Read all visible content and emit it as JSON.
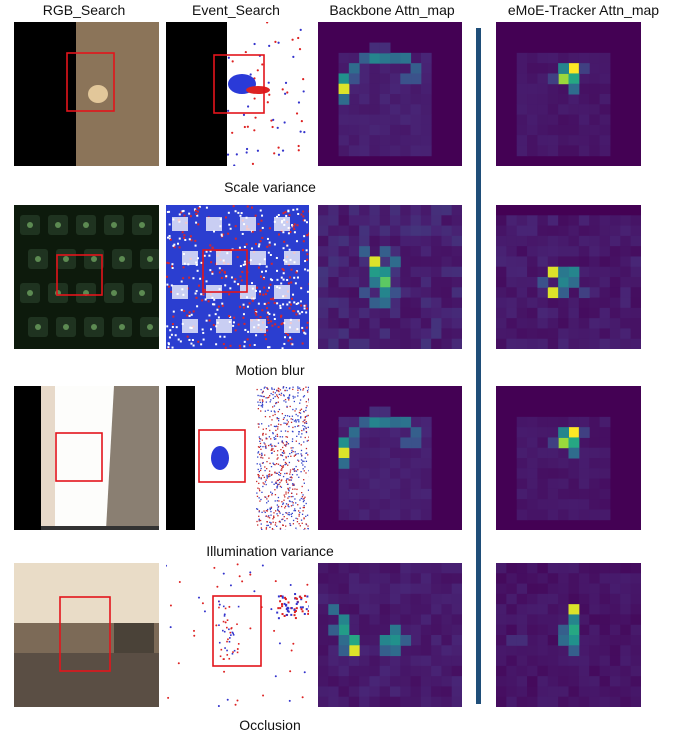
{
  "headers": {
    "rgb": "RGB_Search",
    "event": "Event_Search",
    "backbone": "Backbone Attn_map",
    "emoe": "eMoE-Tracker Attn_map"
  },
  "rows": [
    {
      "caption": "Scale variance"
    },
    {
      "caption": "Motion blur"
    },
    {
      "caption": "Illumination variance"
    },
    {
      "caption": "Occlusion"
    }
  ],
  "colors": {
    "divider": "#1f4e79",
    "bbox": "#e3141b",
    "attn_bg": "#46085c",
    "viridis_low": "#440154",
    "viridis_mid": "#21908c",
    "viridis_high": "#fde725"
  }
}
